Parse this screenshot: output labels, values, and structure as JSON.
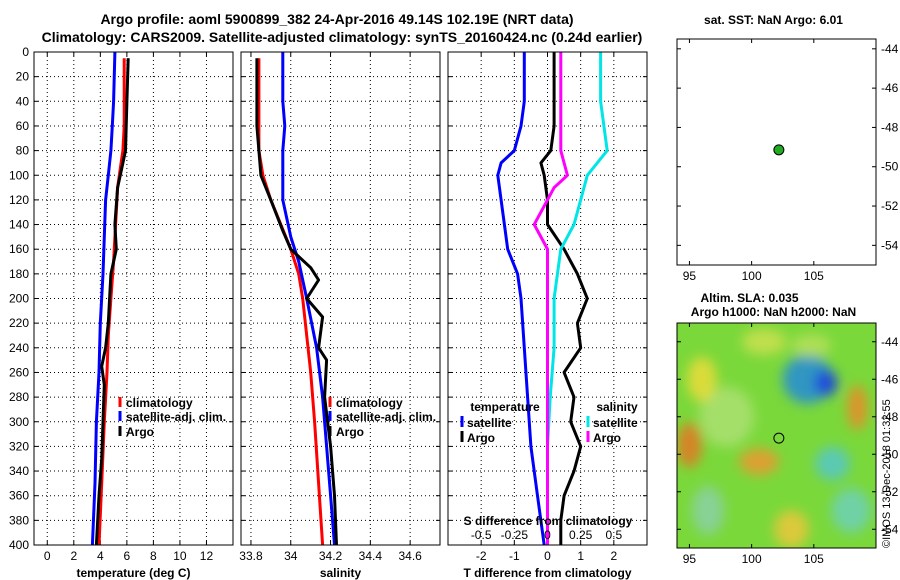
{
  "titles": {
    "line1": "Argo profile: aoml 5900899_382 24-Apr-2016 49.14S 102.19E (NRT data)",
    "line2": "Climatology: CARS2009. Satellite-adjusted climatology: synTS_20160424.nc (0.24d earlier)"
  },
  "colors": {
    "climatology": "#ff0000",
    "satellite": "#0000ff",
    "argo": "#000000",
    "sat_salinity": "#00e5e5",
    "argo_salinity": "#ff00ff",
    "marker": "#22aa22",
    "map_bg": "#7ad83a"
  },
  "watermark": "©IMOS 13-Dec-2018 01:32:55",
  "chart_data": [
    {
      "type": "line",
      "id": "temperature",
      "xlabel": "temperature (deg C)",
      "ylabel": "",
      "xlim": [
        -1,
        14
      ],
      "ylim": [
        400,
        0
      ],
      "xticks": [
        0,
        2,
        4,
        6,
        8,
        10,
        12
      ],
      "yticks": [
        0,
        20,
        40,
        60,
        80,
        100,
        120,
        140,
        160,
        180,
        200,
        220,
        240,
        260,
        280,
        300,
        320,
        340,
        360,
        380,
        400
      ],
      "ytick_labels": [
        "0",
        "20",
        "40",
        "60",
        "80",
        "100",
        "120",
        "140",
        "160",
        "180",
        "200",
        "220",
        "240",
        "260",
        "280",
        "300",
        "320",
        "340",
        "360",
        "380",
        "400"
      ],
      "grid": true,
      "legend": [
        "climatology",
        "satellite-adj. clim.",
        "Argo"
      ],
      "series": [
        {
          "name": "climatology",
          "color": "#ff0000",
          "depth": [
            5,
            60,
            80,
            95,
            110,
            130,
            150,
            170,
            200,
            230,
            260,
            300,
            350,
            400
          ],
          "values": [
            5.8,
            5.8,
            5.7,
            5.5,
            5.3,
            5.2,
            5.1,
            5.0,
            4.8,
            4.6,
            4.5,
            4.3,
            4.1,
            3.9
          ]
        },
        {
          "name": "satellite-adj. clim.",
          "color": "#0000ff",
          "depth": [
            0,
            40,
            60,
            80,
            100,
            120,
            150,
            180,
            220,
            260,
            300,
            350,
            400
          ],
          "values": [
            5.1,
            5.0,
            4.9,
            4.8,
            4.6,
            4.4,
            4.3,
            4.2,
            4.0,
            3.9,
            3.7,
            3.6,
            3.4
          ]
        },
        {
          "name": "Argo",
          "color": "#000000",
          "depth": [
            5,
            40,
            80,
            95,
            110,
            140,
            160,
            180,
            200,
            220,
            240,
            255,
            270,
            300,
            330,
            360,
            400
          ],
          "values": [
            6.1,
            6.0,
            5.9,
            5.6,
            5.3,
            5.1,
            5.2,
            4.8,
            4.7,
            4.6,
            4.4,
            4.1,
            4.3,
            4.2,
            4.1,
            3.9,
            3.7
          ]
        }
      ]
    },
    {
      "type": "line",
      "id": "salinity",
      "xlabel": "salinity",
      "ylabel": "",
      "xlim": [
        33.75,
        34.75
      ],
      "ylim": [
        400,
        0
      ],
      "xticks": [
        33.8,
        34.0,
        34.2,
        34.4,
        34.6
      ],
      "xtick_labels": [
        "33.8",
        "34",
        "34.2",
        "34.4",
        "34.6"
      ],
      "grid": true,
      "legend": [
        "climatology",
        "satellite-adj. clim.",
        "Argo"
      ],
      "series": [
        {
          "name": "climatology",
          "color": "#ff0000",
          "depth": [
            5,
            80,
            100,
            120,
            140,
            160,
            180,
            200,
            230,
            260,
            300,
            350,
            400
          ],
          "values": [
            33.84,
            33.84,
            33.86,
            33.9,
            33.95,
            34.0,
            34.04,
            34.06,
            34.08,
            34.1,
            34.12,
            34.14,
            34.16
          ]
        },
        {
          "name": "satellite-adj. clim.",
          "color": "#0000ff",
          "depth": [
            0,
            40,
            60,
            80,
            100,
            120,
            150,
            170,
            200,
            240,
            280,
            320,
            360,
            400
          ],
          "values": [
            33.96,
            33.96,
            33.97,
            33.96,
            33.96,
            33.96,
            34.0,
            34.04,
            34.08,
            34.13,
            34.16,
            34.18,
            34.2,
            34.22
          ]
        },
        {
          "name": "Argo",
          "color": "#000000",
          "depth": [
            5,
            60,
            80,
            100,
            120,
            145,
            160,
            175,
            185,
            200,
            215,
            240,
            250,
            280,
            320,
            360,
            400
          ],
          "values": [
            33.83,
            33.83,
            33.84,
            33.85,
            33.9,
            33.96,
            34.0,
            34.1,
            34.14,
            34.08,
            34.16,
            34.14,
            34.18,
            34.17,
            34.2,
            34.22,
            34.23
          ]
        }
      ]
    },
    {
      "type": "line",
      "id": "difference",
      "xlabel": "T difference from climatology",
      "xlabel_top": "S difference from climatology",
      "ylabel": "",
      "xlim": [
        -3,
        3
      ],
      "ylim": [
        400,
        0
      ],
      "xticks": [
        -2,
        -1,
        0,
        1,
        2
      ],
      "xtick_labels": [
        "-2",
        "-1",
        "0",
        "1",
        "2"
      ],
      "s_tick_labels": [
        "-0.5",
        "-0.25",
        "0",
        "0.25",
        "0.5"
      ],
      "grid": true,
      "legend_temperature": {
        "title": "temperature",
        "items": [
          "satellite",
          "Argo"
        ]
      },
      "legend_salinity": {
        "title": "salinity",
        "items": [
          "satellite",
          "Argo"
        ]
      },
      "series": [
        {
          "name": "temperature satellite",
          "color": "#0000ff",
          "depth": [
            0,
            40,
            60,
            80,
            90,
            100,
            120,
            140,
            160,
            180,
            200,
            240,
            280,
            320,
            360,
            400
          ],
          "values": [
            -0.7,
            -0.7,
            -0.8,
            -1.0,
            -1.4,
            -1.5,
            -1.4,
            -1.3,
            -1.2,
            -0.9,
            -0.8,
            -0.7,
            -0.6,
            -0.5,
            -0.3,
            -0.1
          ]
        },
        {
          "name": "temperature Argo",
          "color": "#000000",
          "depth": [
            0,
            60,
            80,
            90,
            100,
            120,
            140,
            160,
            170,
            180,
            200,
            220,
            240,
            260,
            280,
            300,
            320,
            340,
            360,
            380,
            400
          ],
          "values": [
            0.2,
            0.2,
            0.1,
            -0.2,
            -0.1,
            0.0,
            0.0,
            0.5,
            0.7,
            0.9,
            1.2,
            0.9,
            1.0,
            0.5,
            0.8,
            0.7,
            1.0,
            0.8,
            0.5,
            0.4,
            0.4
          ]
        },
        {
          "name": "salinity satellite",
          "color": "#00e5e5",
          "depth": [
            0,
            40,
            80,
            100,
            120,
            140,
            160,
            200,
            240,
            280,
            320,
            360,
            400
          ],
          "values": [
            0.4,
            0.4,
            0.45,
            0.3,
            0.25,
            0.2,
            0.1,
            0.05,
            0.05,
            0.02,
            0.0,
            0.0,
            0.0
          ]
        },
        {
          "name": "salinity Argo",
          "color": "#ff00ff",
          "depth": [
            0,
            60,
            80,
            100,
            110,
            120,
            140,
            150,
            160,
            180,
            200,
            240,
            280,
            320,
            360,
            400
          ],
          "values": [
            0.1,
            0.1,
            0.1,
            0.15,
            0.05,
            0.0,
            -0.1,
            -0.05,
            0.0,
            0.0,
            0.0,
            0.0,
            0.0,
            0.0,
            0.0,
            0.0
          ]
        }
      ]
    },
    {
      "type": "scatter",
      "id": "sst_map",
      "title": "sat. SST: NaN Argo: 6.01",
      "xlim": [
        94,
        110
      ],
      "ylim": [
        -55,
        -43.5
      ],
      "xticks": [
        95,
        100,
        105
      ],
      "yticks": [
        -44,
        -46,
        -48,
        -50,
        -52,
        -54
      ],
      "points": [
        {
          "x": 102.19,
          "y": -49.14
        }
      ]
    },
    {
      "type": "heatmap",
      "id": "sla_map",
      "title": "Altim. SLA: 0.035",
      "subtitle": "Argo h1000: NaN h2000: NaN",
      "xlim": [
        94,
        110
      ],
      "ylim": [
        -55,
        -43
      ],
      "xticks": [
        95,
        100,
        105
      ],
      "yticks": [
        -44,
        -46,
        -48,
        -50,
        -52,
        -54
      ],
      "points": [
        {
          "x": 102.19,
          "y": -49.14
        }
      ]
    }
  ]
}
